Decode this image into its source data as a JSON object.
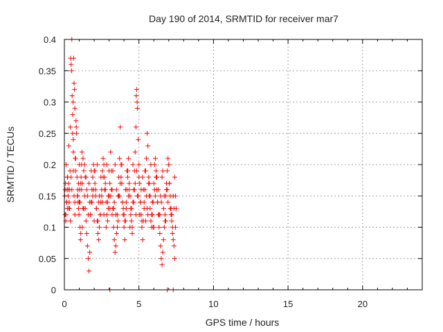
{
  "chart_data": {
    "type": "scatter",
    "title": "Day 190 of 2014, SRMTID for receiver mar7",
    "xlabel": "GPS time / hours",
    "ylabel": "SRMTID / TECUs",
    "xlim": [
      0,
      24
    ],
    "ylim": [
      0,
      0.4
    ],
    "xticks": [
      0,
      5,
      10,
      15,
      20
    ],
    "xtick_labels": [
      "0",
      "5",
      "10",
      "15",
      "20"
    ],
    "yticks": [
      0,
      0.05,
      0.1,
      0.15,
      0.2,
      0.25,
      0.3,
      0.35,
      0.4
    ],
    "ytick_labels": [
      "0",
      "0.05",
      "0.1",
      "0.15",
      "0.2",
      "0.25",
      "0.3",
      "0.35",
      "0.4"
    ],
    "grid": true,
    "marker": "+",
    "color": "#ff0000",
    "series": [
      {
        "name": "SRMTID",
        "x": [
          0.02,
          0.05,
          0.08,
          0.1,
          0.12,
          0.15,
          0.18,
          0.2,
          0.22,
          0.25,
          0.28,
          0.3,
          0.32,
          0.35,
          0.38,
          0.4,
          0.42,
          0.45,
          0.48,
          0.5,
          0.52,
          0.55,
          0.55,
          0.58,
          0.6,
          0.6,
          0.62,
          0.65,
          0.68,
          0.7,
          0.72,
          0.75,
          0.78,
          0.8,
          0.82,
          0.85,
          0.88,
          0.9,
          0.92,
          0.95,
          0.98,
          1.0,
          1.02,
          1.05,
          1.08,
          1.1,
          1.12,
          1.15,
          1.18,
          1.2,
          1.25,
          1.3,
          1.35,
          1.4,
          1.45,
          1.5,
          1.55,
          1.6,
          1.65,
          1.7,
          1.75,
          1.8,
          1.85,
          1.9,
          1.95,
          2.0,
          2.05,
          2.1,
          2.15,
          2.2,
          2.25,
          2.3,
          2.35,
          2.4,
          2.45,
          2.5,
          2.55,
          2.6,
          2.65,
          2.7,
          2.75,
          2.8,
          2.85,
          2.9,
          2.95,
          3.0,
          3.05,
          3.1,
          3.15,
          3.2,
          3.25,
          3.3,
          3.35,
          3.4,
          3.45,
          3.5,
          3.55,
          3.6,
          3.65,
          3.7,
          3.75,
          3.8,
          3.85,
          3.9,
          3.95,
          4.0,
          4.05,
          4.1,
          4.15,
          4.2,
          4.25,
          4.3,
          4.35,
          4.4,
          4.45,
          4.5,
          4.55,
          4.6,
          4.65,
          4.7,
          4.75,
          4.8,
          4.82,
          4.85,
          4.88,
          4.9,
          4.95,
          5.0,
          5.05,
          5.1,
          5.15,
          5.2,
          5.25,
          5.3,
          5.35,
          5.4,
          5.45,
          5.5,
          5.55,
          5.6,
          5.65,
          5.7,
          5.75,
          5.8,
          5.85,
          5.9,
          5.95,
          6.0,
          6.05,
          6.1,
          6.15,
          6.2,
          6.25,
          6.3,
          6.35,
          6.4,
          6.45,
          6.5,
          6.55,
          6.6,
          6.65,
          6.7,
          6.75,
          6.8,
          6.85,
          6.9,
          6.95,
          7.0,
          7.05,
          7.1,
          7.15,
          7.2,
          7.25,
          7.3,
          7.35,
          7.4,
          7.45,
          7.5,
          0.05,
          0.15,
          0.25,
          0.35,
          0.45,
          0.65,
          0.75,
          0.95,
          1.05,
          1.15,
          1.25,
          1.35,
          1.45,
          1.55,
          1.65,
          1.75,
          1.85,
          1.95,
          2.05,
          2.15,
          2.25,
          2.35,
          2.45,
          2.55,
          2.65,
          2.75,
          2.85,
          2.95,
          3.05,
          3.15,
          3.25,
          3.35,
          3.45,
          3.55,
          3.65,
          3.75,
          3.85,
          3.95,
          4.05,
          4.15,
          4.25,
          4.35,
          4.45,
          4.55,
          4.65,
          4.75,
          4.85,
          4.95,
          5.05,
          5.15,
          5.25,
          5.35,
          5.45,
          5.55,
          5.65,
          5.75,
          5.85,
          5.95,
          6.05,
          6.15,
          6.25,
          6.35,
          6.45,
          6.55,
          6.65,
          6.75,
          6.85,
          6.95,
          7.05,
          7.15,
          7.25,
          7.35,
          7.45,
          0.1,
          0.3,
          0.5,
          0.7,
          0.9,
          1.1,
          1.3,
          1.5,
          1.7,
          1.9,
          2.1,
          2.3,
          2.5,
          2.7,
          2.9,
          3.1,
          3.3,
          3.5,
          3.7,
          3.9,
          4.1,
          4.3,
          4.5,
          4.7,
          4.9,
          5.1,
          5.3,
          5.5,
          5.7,
          5.9,
          6.1,
          6.3,
          6.5,
          6.7,
          6.9,
          7.1,
          7.3,
          0.2,
          0.6,
          1.0,
          1.4,
          1.8,
          2.2,
          2.6,
          3.0,
          3.4,
          3.8,
          4.2,
          4.6,
          5.0,
          5.4,
          5.8,
          6.2,
          6.6,
          7.0,
          7.4,
          0.4,
          1.2,
          2.0,
          2.8,
          3.6,
          4.4,
          5.2,
          6.0,
          6.8,
          0.7,
          1.6,
          2.4,
          3.2,
          4.0,
          4.8,
          5.6,
          6.4,
          7.2,
          3.05,
          6.9,
          7.3
        ],
        "y": [
          0.15,
          0.12,
          0.17,
          0.11,
          0.2,
          0.14,
          0.16,
          0.13,
          0.18,
          0.15,
          0.17,
          0.23,
          0.14,
          0.16,
          0.19,
          0.26,
          0.37,
          0.36,
          0.35,
          0.4,
          0.31,
          0.28,
          0.25,
          0.3,
          0.24,
          0.22,
          0.37,
          0.33,
          0.32,
          0.29,
          0.21,
          0.19,
          0.27,
          0.26,
          0.25,
          0.18,
          0.15,
          0.16,
          0.14,
          0.13,
          0.12,
          0.14,
          0.16,
          0.1,
          0.08,
          0.09,
          0.18,
          0.2,
          0.22,
          0.17,
          0.21,
          0.19,
          0.15,
          0.13,
          0.11,
          0.09,
          0.07,
          0.05,
          0.03,
          0.06,
          0.12,
          0.14,
          0.16,
          0.18,
          0.2,
          0.19,
          0.17,
          0.15,
          0.13,
          0.11,
          0.09,
          0.08,
          0.1,
          0.12,
          0.14,
          0.16,
          0.19,
          0.21,
          0.2,
          0.18,
          0.16,
          0.14,
          0.12,
          0.11,
          0.13,
          0.15,
          0.17,
          0.22,
          0.19,
          0.16,
          0.13,
          0.1,
          0.08,
          0.06,
          0.07,
          0.09,
          0.12,
          0.15,
          0.18,
          0.21,
          0.26,
          0.2,
          0.17,
          0.14,
          0.12,
          0.1,
          0.08,
          0.11,
          0.13,
          0.16,
          0.19,
          0.21,
          0.17,
          0.15,
          0.13,
          0.11,
          0.09,
          0.14,
          0.16,
          0.19,
          0.22,
          0.26,
          0.31,
          0.32,
          0.3,
          0.29,
          0.24,
          0.2,
          0.17,
          0.14,
          0.12,
          0.1,
          0.08,
          0.11,
          0.13,
          0.16,
          0.19,
          0.21,
          0.25,
          0.23,
          0.18,
          0.15,
          0.13,
          0.11,
          0.1,
          0.12,
          0.14,
          0.17,
          0.2,
          0.21,
          0.18,
          0.16,
          0.14,
          0.12,
          0.1,
          0.09,
          0.07,
          0.05,
          0.04,
          0.06,
          0.08,
          0.1,
          0.12,
          0.15,
          0.17,
          0.19,
          0.21,
          0.2,
          0.17,
          0.15,
          0.13,
          0.11,
          0.09,
          0.08,
          0.07,
          0.05,
          0.1,
          0.13,
          0.16,
          0.14,
          0.16,
          0.13,
          0.18,
          0.15,
          0.21,
          0.17,
          0.14,
          0.16,
          0.13,
          0.2,
          0.18,
          0.15,
          0.17,
          0.12,
          0.14,
          0.16,
          0.19,
          0.13,
          0.11,
          0.15,
          0.18,
          0.14,
          0.12,
          0.17,
          0.2,
          0.15,
          0.13,
          0.16,
          0.19,
          0.14,
          0.12,
          0.1,
          0.15,
          0.17,
          0.2,
          0.13,
          0.11,
          0.14,
          0.18,
          0.16,
          0.12,
          0.1,
          0.14,
          0.17,
          0.19,
          0.15,
          0.12,
          0.16,
          0.18,
          0.14,
          0.11,
          0.13,
          0.17,
          0.15,
          0.12,
          0.1,
          0.16,
          0.19,
          0.14,
          0.12,
          0.15,
          0.18,
          0.13,
          0.11,
          0.16,
          0.14,
          0.17,
          0.12,
          0.1,
          0.13,
          0.15,
          0.12,
          0.13,
          0.16,
          0.14,
          0.15,
          0.17,
          0.13,
          0.16,
          0.14,
          0.15,
          0.16,
          0.14,
          0.15,
          0.16,
          0.14,
          0.15,
          0.13,
          0.16,
          0.15,
          0.14,
          0.16,
          0.15,
          0.13,
          0.16,
          0.15,
          0.14,
          0.16,
          0.15,
          0.17,
          0.14,
          0.15,
          0.16,
          0.14,
          0.15,
          0.16,
          0.13,
          0.15,
          0.18,
          0.19,
          0.2,
          0.18,
          0.19,
          0.2,
          0.18,
          0.19,
          0.2,
          0.18,
          0.19,
          0.2,
          0.18,
          0.19,
          0.2,
          0.18,
          0.19,
          0.2,
          0.18,
          0.11,
          0.1,
          0.11,
          0.1,
          0.11,
          0.1,
          0.11,
          0.1,
          0.11,
          0.12,
          0.12,
          0.12,
          0.12,
          0.12,
          0.12,
          0.12,
          0.12,
          0.12,
          0.0,
          0.0,
          0.0
        ]
      }
    ]
  }
}
